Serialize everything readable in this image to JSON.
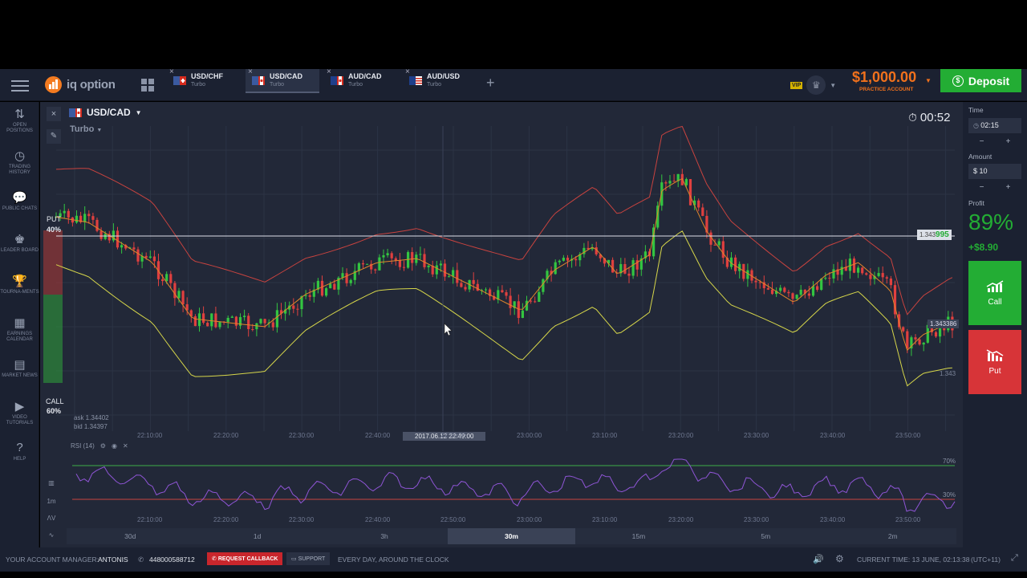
{
  "app": {
    "brand": "iq option"
  },
  "tabs": [
    {
      "name": "USD/CHF",
      "type": "Turbo"
    },
    {
      "name": "USD/CAD",
      "type": "Turbo"
    },
    {
      "name": "AUD/CAD",
      "type": "Turbo"
    },
    {
      "name": "AUD/USD",
      "type": "Turbo"
    }
  ],
  "header": {
    "vip": "VIP",
    "balance": "$1,000.00",
    "balance_label": "PRACTICE ACCOUNT",
    "deposit": "Deposit"
  },
  "sidebar": [
    {
      "icon": "swap-icon",
      "label": "OPEN POSITIONS"
    },
    {
      "icon": "history-icon",
      "label": "TRADING HISTORY"
    },
    {
      "icon": "chat-icon",
      "label": "PUBLIC CHATS"
    },
    {
      "icon": "leader-icon",
      "label": "LEADER BOARD"
    },
    {
      "icon": "trophy-icon",
      "label": "TOURNA-MENTS"
    },
    {
      "icon": "calendar-icon",
      "label": "EARNINGS CALENDAR"
    },
    {
      "icon": "news-icon",
      "label": "MARKET NEWS"
    },
    {
      "icon": "play-icon",
      "label": "VIDEO TUTORIALS"
    },
    {
      "icon": "help-icon",
      "label": "HELP"
    }
  ],
  "chart": {
    "asset": "USD/CAD",
    "mode": "Turbo",
    "timer": "00:52",
    "put_label": "PUT",
    "put_pct": "40%",
    "call_label": "CALL",
    "call_pct": "60%",
    "ask": "ask 1.34402",
    "bid": "bid 1.34397",
    "price_current": "1.343",
    "price_current_hi": "995",
    "price_mid": "1.343386",
    "price_low": "1.343",
    "cursor_time": "2017.06.12 22:49:00",
    "x_labels": [
      "22:10:00",
      "22:20:00",
      "22:30:00",
      "22:40:00",
      "22:50:00",
      "23:00:00",
      "23:10:00",
      "23:20:00",
      "23:30:00",
      "23:40:00",
      "23:50:00"
    ],
    "rsi_label": "RSI (14)",
    "rsi_high": "70%",
    "rsi_low": "30%",
    "timeframes": [
      "30d",
      "1d",
      "3h",
      "30m",
      "15m",
      "5m",
      "2m"
    ],
    "active_timeframe": "30m",
    "candle_size": "1m"
  },
  "chart_data": {
    "type": "candlestick",
    "ylim": [
      1.3425,
      1.3448
    ],
    "note_series": [
      "price",
      "bollinger upper",
      "bollinger middle",
      "bollinger lower",
      "RSI (14)"
    ]
  },
  "panel": {
    "time_label": "Time",
    "time_value": "02:15",
    "amount_label": "Amount",
    "amount_value": "$ 10",
    "profit_label": "Profit",
    "profit_pct": "89%",
    "profit_amt": "+$8.90",
    "call": "Call",
    "put": "Put"
  },
  "footer": {
    "manager_label": "YOUR ACCOUNT MANAGER:",
    "manager_name": "ANTONIS",
    "phone": "448000588712",
    "callback": "REQUEST CALLBACK",
    "support": "SUPPORT",
    "support_hours": "EVERY DAY, AROUND THE CLOCK",
    "current_time": "CURRENT TIME: 13 JUNE, 02:13:38",
    "timezone": "(UTC+11)"
  },
  "colors": {
    "accent_orange": "#f1711c",
    "call_green": "#23ad34",
    "put_red": "#d73438"
  }
}
